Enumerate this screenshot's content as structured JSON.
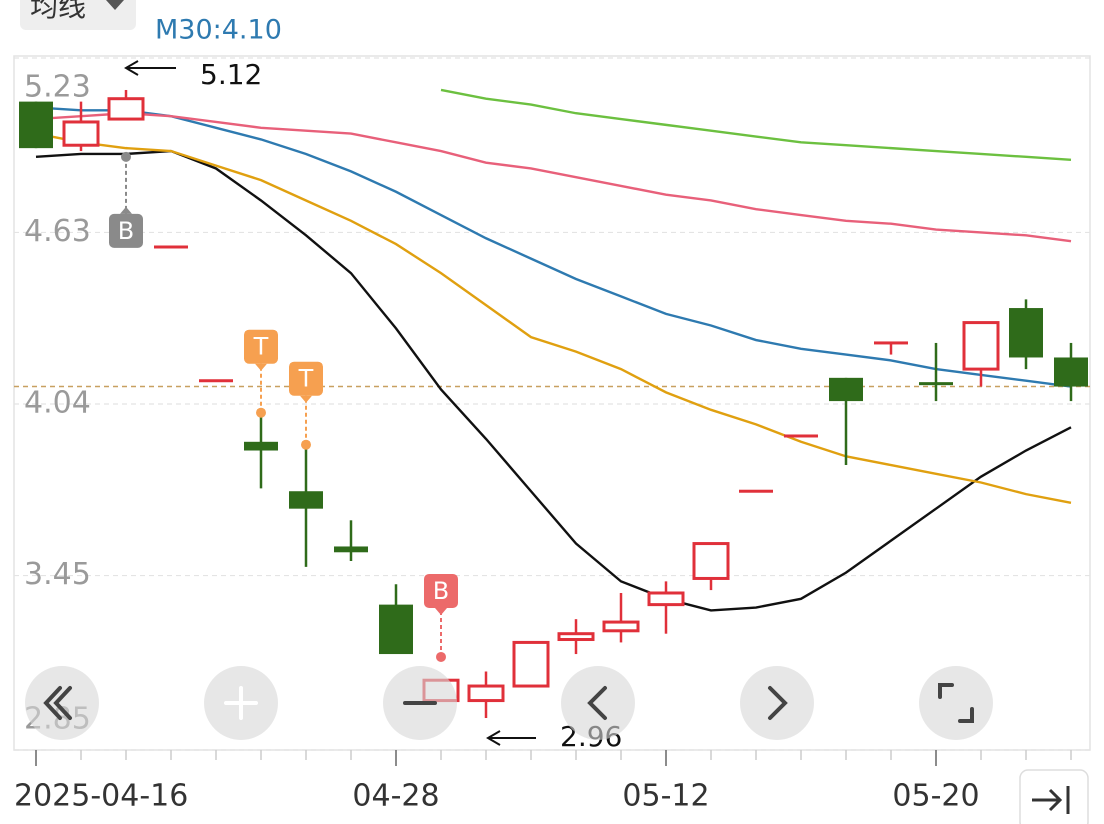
{
  "header": {
    "button": "均线",
    "legend": "M30:4.10"
  },
  "chart_data": {
    "type": "candlestick",
    "categories": [
      "2025-04-16",
      null,
      null,
      null,
      null,
      null,
      null,
      null,
      "04-28",
      null,
      null,
      null,
      null,
      null,
      "05-12",
      null,
      null,
      null,
      null,
      null,
      "05-20",
      null,
      null,
      null
    ],
    "open": [
      5.08,
      4.93,
      5.02,
      4.58,
      4.12,
      3.91,
      3.74,
      3.55,
      3.35,
      3.02,
      3.02,
      3.07,
      3.23,
      3.26,
      3.35,
      3.44,
      3.74,
      3.93,
      4.13,
      4.25,
      4.11,
      4.16,
      4.37,
      4.2
    ],
    "close": [
      4.92,
      5.01,
      5.09,
      4.58,
      4.12,
      3.88,
      3.68,
      3.53,
      3.18,
      3.09,
      3.07,
      3.22,
      3.25,
      3.29,
      3.39,
      3.56,
      3.74,
      3.93,
      4.05,
      4.25,
      4.1,
      4.32,
      4.2,
      4.1
    ],
    "high": [
      5.08,
      5.08,
      5.12,
      4.58,
      4.12,
      4.0,
      3.89,
      3.64,
      3.42,
      3.09,
      3.12,
      3.22,
      3.3,
      3.39,
      3.43,
      3.56,
      3.74,
      3.93,
      4.13,
      4.25,
      4.25,
      4.32,
      4.4,
      4.25
    ],
    "low": [
      4.92,
      4.91,
      5.02,
      4.58,
      4.12,
      3.75,
      3.48,
      3.5,
      3.18,
      3.02,
      2.96,
      3.07,
      3.18,
      3.22,
      3.25,
      3.4,
      3.74,
      3.93,
      3.83,
      4.21,
      4.05,
      4.1,
      4.16,
      4.05
    ],
    "up_color": "#e0303a",
    "down_color": "#2f6b1a",
    "series": [
      {
        "color": "#111111",
        "values": [
          4.89,
          4.9,
          4.9,
          4.91,
          4.85,
          4.74,
          4.62,
          4.49,
          4.3,
          4.09,
          3.92,
          3.74,
          3.56,
          3.43,
          3.37,
          3.33,
          3.34,
          3.37,
          3.46,
          3.57,
          3.68,
          3.79,
          3.88,
          3.96
        ]
      },
      {
        "color": "#e0a010",
        "values": [
          4.97,
          4.94,
          4.92,
          4.91,
          4.86,
          4.81,
          4.74,
          4.67,
          4.59,
          4.49,
          4.38,
          4.27,
          4.22,
          4.16,
          4.08,
          4.02,
          3.97,
          3.91,
          3.86,
          3.83,
          3.8,
          3.77,
          3.73,
          3.7
        ]
      },
      {
        "color": "#2e7ab0",
        "values": [
          5.06,
          5.05,
          5.05,
          5.03,
          4.99,
          4.95,
          4.9,
          4.84,
          4.77,
          4.69,
          4.61,
          4.54,
          4.47,
          4.41,
          4.35,
          4.31,
          4.26,
          4.23,
          4.21,
          4.19,
          4.16,
          4.14,
          4.12,
          4.1
        ]
      },
      {
        "color": "#e8607a",
        "values": [
          5.02,
          5.03,
          5.04,
          5.03,
          5.01,
          4.99,
          4.98,
          4.97,
          4.94,
          4.91,
          4.87,
          4.85,
          4.82,
          4.79,
          4.76,
          4.74,
          4.71,
          4.69,
          4.67,
          4.66,
          4.64,
          4.63,
          4.62,
          4.6
        ]
      },
      {
        "color": "#6cc040",
        "values": [
          null,
          null,
          null,
          null,
          null,
          null,
          null,
          null,
          null,
          5.12,
          5.09,
          5.07,
          5.04,
          5.02,
          5.0,
          4.98,
          4.96,
          4.94,
          4.93,
          4.92,
          4.91,
          4.9,
          4.89,
          4.88
        ]
      }
    ],
    "markers": [
      null,
      null,
      {
        "label": "B",
        "value": 4.89,
        "color": "#8a8a8a"
      },
      null,
      null,
      {
        "label": "T",
        "value": 4.01,
        "color": "#f6a050"
      },
      {
        "label": "T",
        "value": 3.9,
        "color": "#f6a050"
      },
      null,
      null,
      {
        "label": "B",
        "value": 3.17,
        "color": "#ec6a6a"
      },
      null,
      null,
      null,
      null,
      null,
      null,
      null,
      null,
      null,
      null,
      null,
      null,
      null,
      null
    ],
    "ylim": [
      2.85,
      5.23
    ],
    "yticks": [
      2.85,
      3.45,
      4.04,
      4.63,
      5.23
    ],
    "grid": true
  }
}
